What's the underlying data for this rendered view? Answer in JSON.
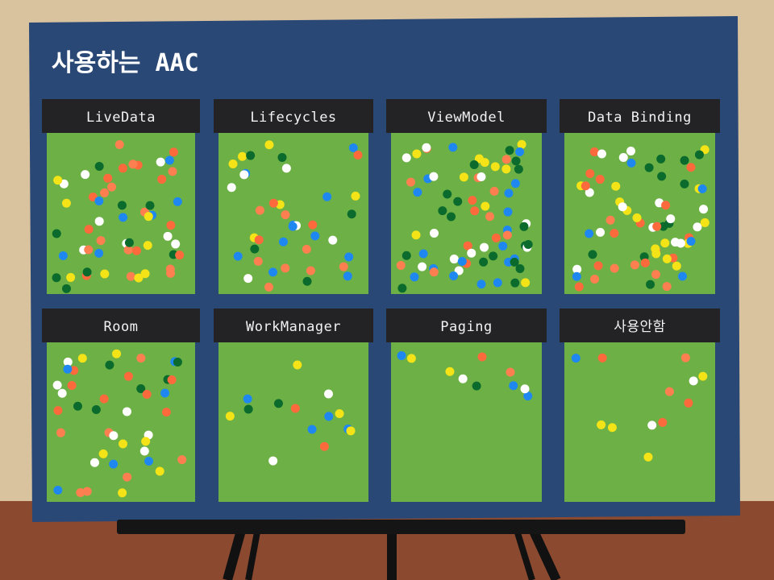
{
  "poster": {
    "title": "사용하는 AAC",
    "panels": [
      {
        "label": "LiveData"
      },
      {
        "label": "Lifecycles"
      },
      {
        "label": "ViewModel"
      },
      {
        "label": "Data Binding"
      },
      {
        "label": "Room"
      },
      {
        "label": "WorkManager"
      },
      {
        "label": "Paging"
      },
      {
        "label": "사용안함"
      }
    ]
  }
}
